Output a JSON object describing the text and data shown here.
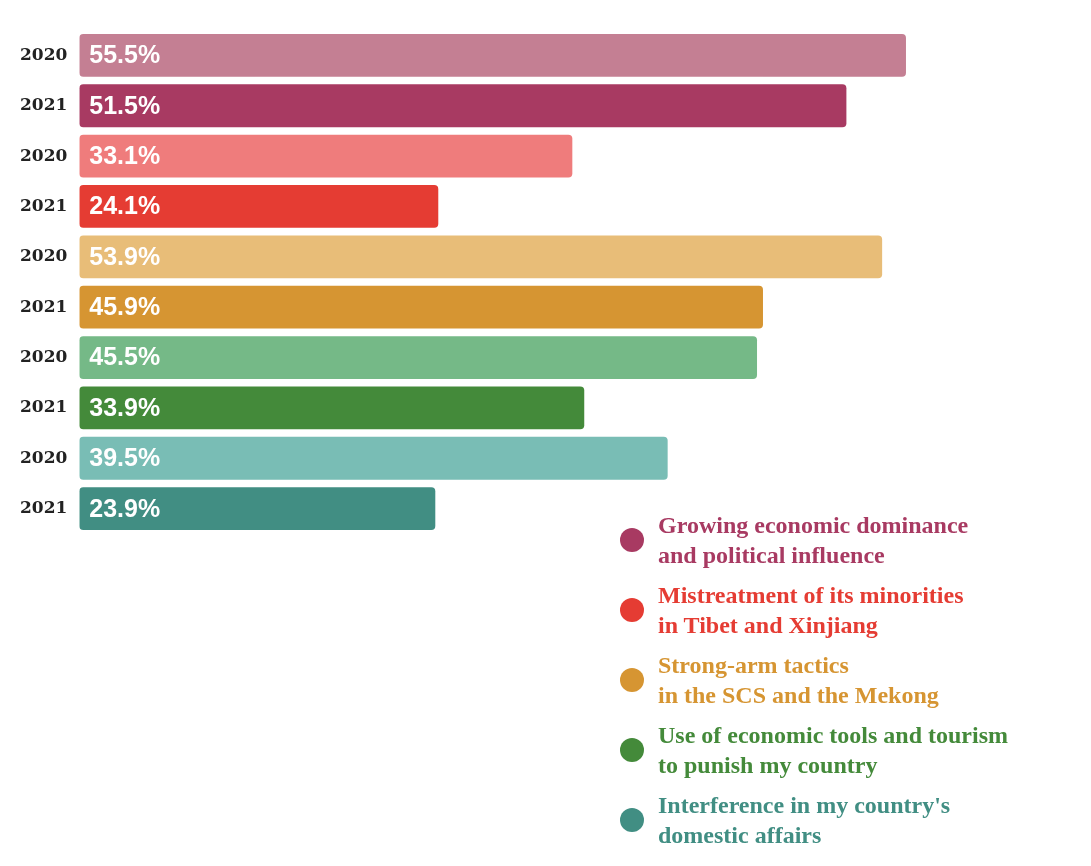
{
  "chart_data": {
    "type": "bar",
    "orientation": "horizontal",
    "stacked": true,
    "categories": [
      "2020",
      "2021",
      "2020",
      "2021",
      "2020",
      "2021",
      "2020",
      "2021",
      "2020",
      "2021"
    ],
    "tick_labels": "y",
    "legend": "bottom right",
    "series": [
      {
        "name": "Growing economic dominance\nand political influence",
        "color": "#a83a62",
        "colors": [
          "#c47f93",
          "#a83a62",
          null,
          null,
          null,
          null,
          null,
          null,
          null,
          null
        ],
        "values": [
          55.5,
          51.5,
          null,
          null,
          null,
          null,
          null,
          null,
          null,
          null
        ],
        "value_labels": [
          "55.5%",
          "51.5%",
          null,
          null,
          null,
          null,
          null,
          null,
          null,
          null
        ]
      },
      {
        "name": "Mistreatment of its minorities\nin Tibet and Xinjiang",
        "color": "#e53c33",
        "colors": [
          null,
          null,
          "#ef7c7c",
          "#e53c33",
          null,
          null,
          null,
          null,
          null,
          null
        ],
        "values": [
          null,
          null,
          33.1,
          24.1,
          null,
          null,
          null,
          null,
          null,
          null
        ],
        "value_labels": [
          null,
          null,
          "33.1%",
          "24.1%",
          null,
          null,
          null,
          null,
          null,
          null
        ]
      },
      {
        "name": "Strong-arm tactics\nin the SCS and the Mekong",
        "color": "#d69532",
        "colors": [
          null,
          null,
          null,
          null,
          "#e8bd78",
          "#d69532",
          null,
          null,
          null,
          null
        ],
        "values": [
          null,
          null,
          null,
          null,
          53.9,
          45.9,
          null,
          null,
          null,
          null
        ],
        "value_labels": [
          null,
          null,
          null,
          null,
          "53.9%",
          "45.9%",
          null,
          null,
          null,
          null
        ]
      },
      {
        "name": "Use of economic tools and tourism\nto punish my country",
        "color": "#448a3a",
        "colors": [
          null,
          null,
          null,
          null,
          null,
          null,
          "#75b987",
          "#448a3a",
          null,
          null
        ],
        "values": [
          null,
          null,
          null,
          null,
          null,
          null,
          45.5,
          33.9,
          null,
          null
        ],
        "value_labels": [
          null,
          null,
          null,
          null,
          null,
          null,
          "45.5%",
          "33.9%",
          null,
          null
        ]
      },
      {
        "name": "Interference in my country's\ndomestic affairs",
        "color": "#418e83",
        "colors": [
          null,
          null,
          null,
          null,
          null,
          null,
          null,
          null,
          "#79bdb5",
          "#418e83"
        ],
        "values": [
          null,
          null,
          null,
          null,
          null,
          null,
          null,
          null,
          39.5,
          23.9
        ],
        "value_labels": [
          null,
          null,
          null,
          null,
          null,
          null,
          null,
          null,
          "39.5%",
          "23.9%"
        ]
      }
    ]
  }
}
